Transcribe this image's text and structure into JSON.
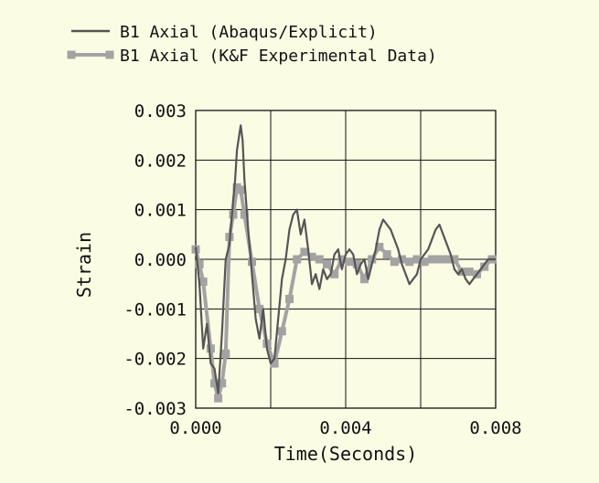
{
  "chart_data": {
    "type": "line",
    "xlabel": "Time(Seconds)",
    "ylabel": "Strain",
    "xlim": [
      0,
      0.008
    ],
    "ylim": [
      -0.003,
      0.003
    ],
    "x_ticks": [
      0.0,
      0.002,
      0.004,
      0.006,
      0.008
    ],
    "x_tick_labels": [
      "0.000",
      "",
      "0.004",
      "",
      "0.008"
    ],
    "y_ticks": [
      0.003,
      0.002,
      0.001,
      0.0,
      -0.001,
      -0.002,
      -0.003
    ],
    "y_tick_labels": [
      "0.003",
      "0.002",
      "0.001",
      "0.000",
      "-0.001",
      "-0.002",
      "-0.003"
    ],
    "grid": true,
    "legend_position": "top-left",
    "colors": {
      "background": "#fbfce4",
      "sim": "#555555",
      "exp": "#a3a3a3",
      "grid": "#111111"
    },
    "series": [
      {
        "name": "B1 Axial (Abaqus/Explicit)",
        "marker": "none",
        "x": [
          0.0,
          0.0001,
          0.0002,
          0.0003,
          0.0004,
          0.0005,
          0.0006,
          0.0007,
          0.0008,
          0.0009,
          0.001,
          0.00105,
          0.0011,
          0.0012,
          0.00125,
          0.0013,
          0.0014,
          0.0015,
          0.0016,
          0.0017,
          0.0018,
          0.0019,
          0.002,
          0.0021,
          0.0022,
          0.0023,
          0.0024,
          0.0025,
          0.0026,
          0.0027,
          0.0028,
          0.0029,
          0.003,
          0.0031,
          0.0032,
          0.0033,
          0.0034,
          0.0035,
          0.0036,
          0.0037,
          0.0038,
          0.0039,
          0.004,
          0.0041,
          0.0042,
          0.0043,
          0.0044,
          0.0045,
          0.0046,
          0.0047,
          0.0048,
          0.0049,
          0.005,
          0.0051,
          0.0052,
          0.0053,
          0.0054,
          0.0055,
          0.0056,
          0.0057,
          0.0058,
          0.0059,
          0.006,
          0.0061,
          0.0062,
          0.0063,
          0.0064,
          0.0065,
          0.0066,
          0.0067,
          0.0068,
          0.0069,
          0.007,
          0.0071,
          0.0072,
          0.0073,
          0.0074,
          0.0075,
          0.0076,
          0.0077,
          0.0078,
          0.0079,
          0.008
        ],
        "y": [
          0.00025,
          -0.0005,
          -0.0018,
          -0.0013,
          -0.0021,
          -0.0022,
          -0.0027,
          -0.0015,
          0.0,
          0.0003,
          0.0012,
          0.0016,
          0.0022,
          0.0027,
          0.0024,
          0.0016,
          0.0006,
          -0.0003,
          -0.0012,
          -0.0016,
          -0.001,
          -0.0018,
          -0.0021,
          -0.002,
          -0.0012,
          -0.0004,
          0.0,
          0.0006,
          0.0009,
          0.001,
          0.0005,
          0.0008,
          0.0002,
          -0.0005,
          -0.0003,
          -0.0006,
          -0.0002,
          -0.0004,
          -0.0003,
          0.0001,
          0.0002,
          -0.0002,
          0.0001,
          0.0002,
          0.0001,
          -0.0003,
          -0.0001,
          0.0,
          -0.0004,
          -0.0001,
          0.0002,
          0.0006,
          0.0008,
          0.0007,
          0.0006,
          0.0004,
          0.0002,
          -0.0001,
          -0.0003,
          -0.0005,
          -0.0004,
          -0.0003,
          0.0,
          0.0001,
          0.0002,
          0.0004,
          0.0006,
          0.0007,
          0.0005,
          0.0003,
          0.0001,
          -0.0002,
          -0.0003,
          -0.0002,
          -0.0004,
          -0.0005,
          -0.0004,
          -0.0003,
          -0.0002,
          -0.0001,
          0.0,
          0.0,
          0.0
        ]
      },
      {
        "name": "B1 Axial (K&F Experimental Data)",
        "marker": "square",
        "x": [
          0.0,
          0.0001,
          0.0002,
          0.0004,
          0.0005,
          0.0006,
          0.0007,
          0.0008,
          0.0009,
          0.001,
          0.0011,
          0.0012,
          0.0013,
          0.0015,
          0.0017,
          0.0019,
          0.0021,
          0.0023,
          0.0025,
          0.0027,
          0.0029,
          0.0031,
          0.0033,
          0.0035,
          0.0037,
          0.0039,
          0.0041,
          0.0043,
          0.0045,
          0.0047,
          0.0049,
          0.0051,
          0.0053,
          0.0055,
          0.0057,
          0.0059,
          0.0061,
          0.0063,
          0.0065,
          0.0067,
          0.0069,
          0.0071,
          0.0073,
          0.0075,
          0.0077,
          0.0079
        ],
        "y": [
          0.0002,
          -0.0001,
          -0.00045,
          -0.0018,
          -0.0025,
          -0.0028,
          -0.0025,
          -0.0019,
          0.00045,
          0.0009,
          0.00145,
          0.0014,
          0.0009,
          -5e-05,
          -0.001,
          -0.0017,
          -0.0021,
          -0.00145,
          -0.0008,
          0.0,
          0.00015,
          5e-05,
          0.0,
          -0.0001,
          -0.0003,
          0.0,
          -5e-05,
          -0.0001,
          -0.0004,
          0.0,
          0.00025,
          0.0001,
          -5e-05,
          0.0,
          -5e-05,
          0.0,
          -5e-05,
          0.0,
          0.0,
          0.0,
          0.0,
          -0.00025,
          -0.00025,
          -0.0003,
          -0.00015,
          0.0
        ]
      }
    ]
  }
}
